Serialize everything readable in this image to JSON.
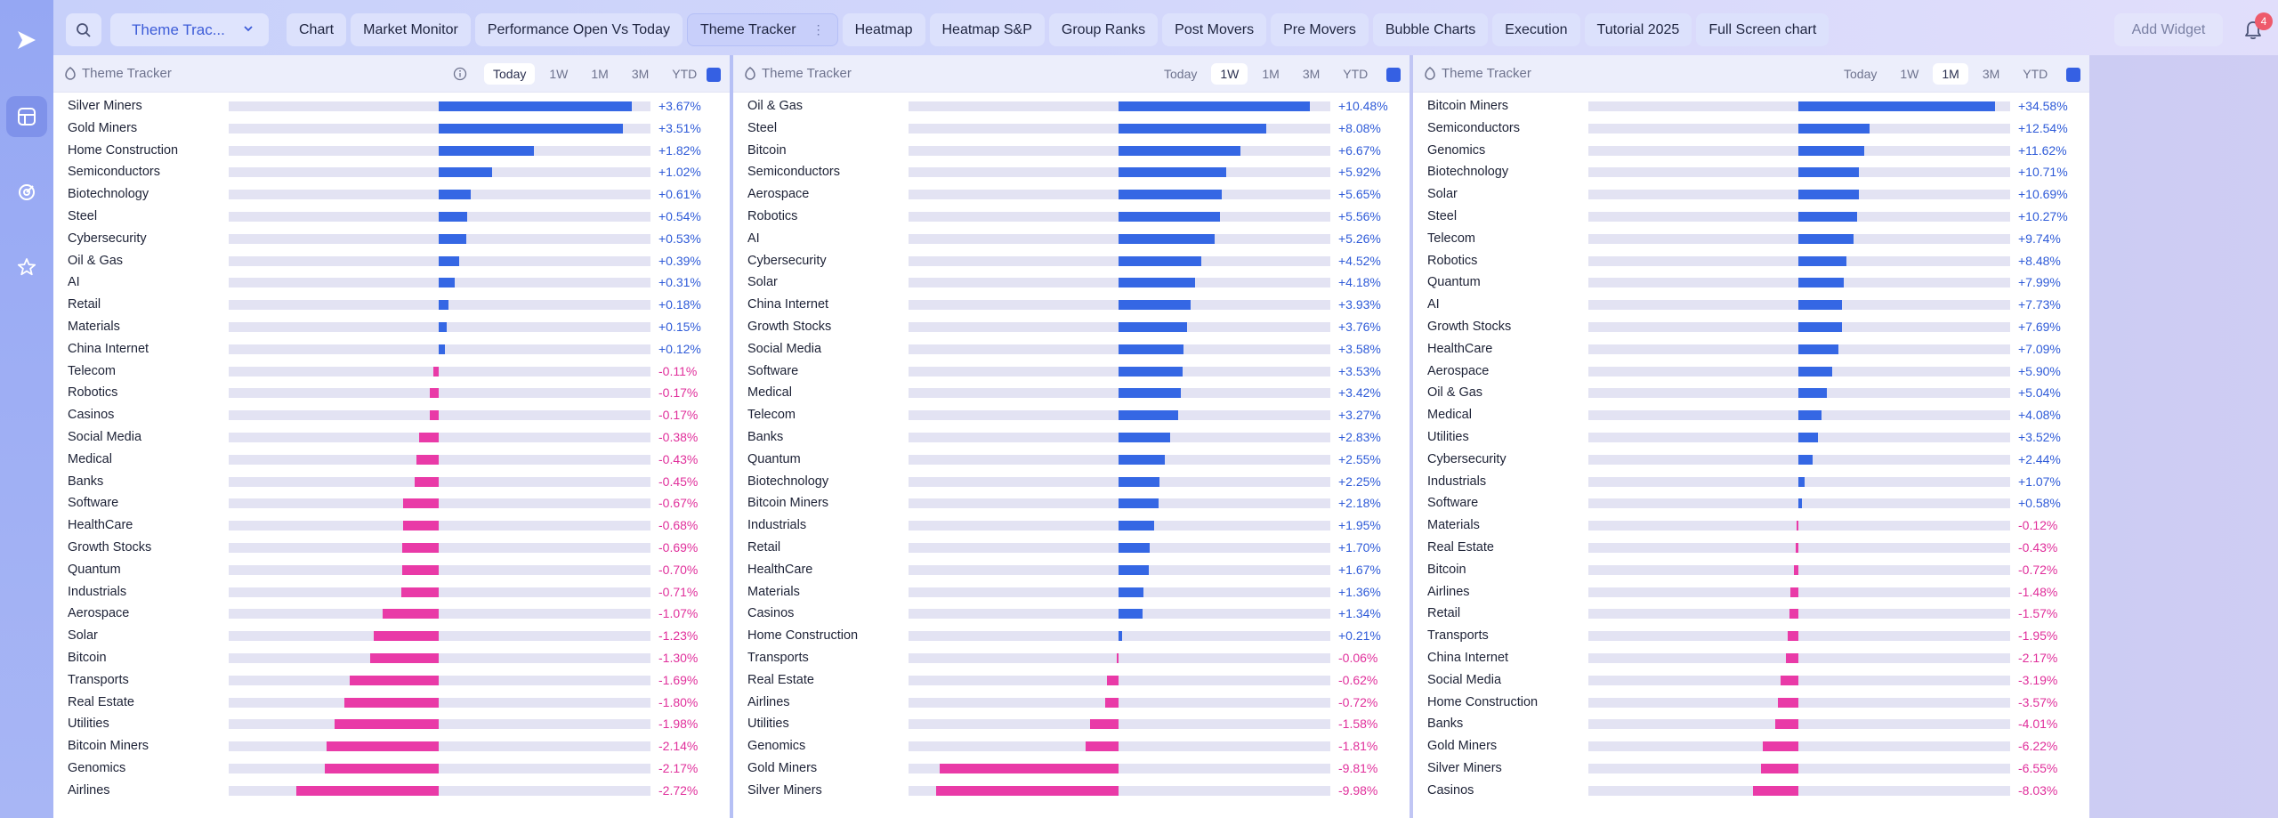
{
  "nav": {
    "theme_select": "Theme Trac...",
    "tabs": [
      "Chart",
      "Market Monitor",
      "Performance Open Vs Today",
      "Theme Tracker",
      "Heatmap",
      "Heatmap S&P",
      "Group Ranks",
      "Post Movers",
      "Pre Movers",
      "Bubble Charts",
      "Execution",
      "Tutorial 2025",
      "Full Screen chart"
    ],
    "active_tab": "Theme Tracker",
    "add_widget": "Add Widget",
    "notification_count": "4"
  },
  "colors": {
    "positive": "#3567e4",
    "negative": "#e93aa7",
    "accent": "#3560e3"
  },
  "panels": [
    {
      "title": "Theme Tracker",
      "periods": [
        "Today",
        "1W",
        "1M",
        "3M",
        "YTD"
      ],
      "active_period": "Today",
      "scale_max": 4.0,
      "rows": [
        {
          "name": "Silver Miners",
          "value": 3.67,
          "label": "+3.67%"
        },
        {
          "name": "Gold Miners",
          "value": 3.51,
          "label": "+3.51%"
        },
        {
          "name": "Home Construction",
          "value": 1.82,
          "label": "+1.82%"
        },
        {
          "name": "Semiconductors",
          "value": 1.02,
          "label": "+1.02%"
        },
        {
          "name": "Biotechnology",
          "value": 0.61,
          "label": "+0.61%"
        },
        {
          "name": "Steel",
          "value": 0.54,
          "label": "+0.54%"
        },
        {
          "name": "Cybersecurity",
          "value": 0.53,
          "label": "+0.53%"
        },
        {
          "name": "Oil & Gas",
          "value": 0.39,
          "label": "+0.39%"
        },
        {
          "name": "AI",
          "value": 0.31,
          "label": "+0.31%"
        },
        {
          "name": "Retail",
          "value": 0.18,
          "label": "+0.18%"
        },
        {
          "name": "Materials",
          "value": 0.15,
          "label": "+0.15%"
        },
        {
          "name": "China Internet",
          "value": 0.12,
          "label": "+0.12%"
        },
        {
          "name": "Telecom",
          "value": -0.11,
          "label": "-0.11%"
        },
        {
          "name": "Robotics",
          "value": -0.17,
          "label": "-0.17%"
        },
        {
          "name": "Casinos",
          "value": -0.17,
          "label": "-0.17%"
        },
        {
          "name": "Social Media",
          "value": -0.38,
          "label": "-0.38%"
        },
        {
          "name": "Medical",
          "value": -0.43,
          "label": "-0.43%"
        },
        {
          "name": "Banks",
          "value": -0.45,
          "label": "-0.45%"
        },
        {
          "name": "Software",
          "value": -0.67,
          "label": "-0.67%"
        },
        {
          "name": "HealthCare",
          "value": -0.68,
          "label": "-0.68%"
        },
        {
          "name": "Growth Stocks",
          "value": -0.69,
          "label": "-0.69%"
        },
        {
          "name": "Quantum",
          "value": -0.7,
          "label": "-0.70%"
        },
        {
          "name": "Industrials",
          "value": -0.71,
          "label": "-0.71%"
        },
        {
          "name": "Aerospace",
          "value": -1.07,
          "label": "-1.07%"
        },
        {
          "name": "Solar",
          "value": -1.23,
          "label": "-1.23%"
        },
        {
          "name": "Bitcoin",
          "value": -1.3,
          "label": "-1.30%"
        },
        {
          "name": "Transports",
          "value": -1.69,
          "label": "-1.69%"
        },
        {
          "name": "Real Estate",
          "value": -1.8,
          "label": "-1.80%"
        },
        {
          "name": "Utilities",
          "value": -1.98,
          "label": "-1.98%"
        },
        {
          "name": "Bitcoin Miners",
          "value": -2.14,
          "label": "-2.14%"
        },
        {
          "name": "Genomics",
          "value": -2.17,
          "label": "-2.17%"
        },
        {
          "name": "Airlines",
          "value": -2.72,
          "label": "-2.72%"
        }
      ]
    },
    {
      "title": "Theme Tracker",
      "periods": [
        "Today",
        "1W",
        "1M",
        "3M",
        "YTD"
      ],
      "active_period": "1W",
      "scale_max": 11.5,
      "rows": [
        {
          "name": "Oil & Gas",
          "value": 10.48,
          "label": "+10.48%"
        },
        {
          "name": "Steel",
          "value": 8.08,
          "label": "+8.08%"
        },
        {
          "name": "Bitcoin",
          "value": 6.67,
          "label": "+6.67%"
        },
        {
          "name": "Semiconductors",
          "value": 5.92,
          "label": "+5.92%"
        },
        {
          "name": "Aerospace",
          "value": 5.65,
          "label": "+5.65%"
        },
        {
          "name": "Robotics",
          "value": 5.56,
          "label": "+5.56%"
        },
        {
          "name": "AI",
          "value": 5.26,
          "label": "+5.26%"
        },
        {
          "name": "Cybersecurity",
          "value": 4.52,
          "label": "+4.52%"
        },
        {
          "name": "Solar",
          "value": 4.18,
          "label": "+4.18%"
        },
        {
          "name": "China Internet",
          "value": 3.93,
          "label": "+3.93%"
        },
        {
          "name": "Growth Stocks",
          "value": 3.76,
          "label": "+3.76%"
        },
        {
          "name": "Social Media",
          "value": 3.58,
          "label": "+3.58%"
        },
        {
          "name": "Software",
          "value": 3.53,
          "label": "+3.53%"
        },
        {
          "name": "Medical",
          "value": 3.42,
          "label": "+3.42%"
        },
        {
          "name": "Telecom",
          "value": 3.27,
          "label": "+3.27%"
        },
        {
          "name": "Banks",
          "value": 2.83,
          "label": "+2.83%"
        },
        {
          "name": "Quantum",
          "value": 2.55,
          "label": "+2.55%"
        },
        {
          "name": "Biotechnology",
          "value": 2.25,
          "label": "+2.25%"
        },
        {
          "name": "Bitcoin Miners",
          "value": 2.18,
          "label": "+2.18%"
        },
        {
          "name": "Industrials",
          "value": 1.95,
          "label": "+1.95%"
        },
        {
          "name": "Retail",
          "value": 1.7,
          "label": "+1.70%"
        },
        {
          "name": "HealthCare",
          "value": 1.67,
          "label": "+1.67%"
        },
        {
          "name": "Materials",
          "value": 1.36,
          "label": "+1.36%"
        },
        {
          "name": "Casinos",
          "value": 1.34,
          "label": "+1.34%"
        },
        {
          "name": "Home Construction",
          "value": 0.21,
          "label": "+0.21%"
        },
        {
          "name": "Transports",
          "value": -0.06,
          "label": "-0.06%"
        },
        {
          "name": "Real Estate",
          "value": -0.62,
          "label": "-0.62%"
        },
        {
          "name": "Airlines",
          "value": -0.72,
          "label": "-0.72%"
        },
        {
          "name": "Utilities",
          "value": -1.58,
          "label": "-1.58%"
        },
        {
          "name": "Genomics",
          "value": -1.81,
          "label": "-1.81%"
        },
        {
          "name": "Gold Miners",
          "value": -9.81,
          "label": "-9.81%"
        },
        {
          "name": "Silver Miners",
          "value": -9.98,
          "label": "-9.98%"
        }
      ]
    },
    {
      "title": "Theme Tracker",
      "periods": [
        "Today",
        "1W",
        "1M",
        "3M",
        "YTD"
      ],
      "active_period": "1M",
      "scale_max": 37.0,
      "rows": [
        {
          "name": "Bitcoin Miners",
          "value": 34.58,
          "label": "+34.58%"
        },
        {
          "name": "Semiconductors",
          "value": 12.54,
          "label": "+12.54%"
        },
        {
          "name": "Genomics",
          "value": 11.62,
          "label": "+11.62%"
        },
        {
          "name": "Biotechnology",
          "value": 10.71,
          "label": "+10.71%"
        },
        {
          "name": "Solar",
          "value": 10.69,
          "label": "+10.69%"
        },
        {
          "name": "Steel",
          "value": 10.27,
          "label": "+10.27%"
        },
        {
          "name": "Telecom",
          "value": 9.74,
          "label": "+9.74%"
        },
        {
          "name": "Robotics",
          "value": 8.48,
          "label": "+8.48%"
        },
        {
          "name": "Quantum",
          "value": 7.99,
          "label": "+7.99%"
        },
        {
          "name": "AI",
          "value": 7.73,
          "label": "+7.73%"
        },
        {
          "name": "Growth Stocks",
          "value": 7.69,
          "label": "+7.69%"
        },
        {
          "name": "HealthCare",
          "value": 7.09,
          "label": "+7.09%"
        },
        {
          "name": "Aerospace",
          "value": 5.9,
          "label": "+5.90%"
        },
        {
          "name": "Oil & Gas",
          "value": 5.04,
          "label": "+5.04%"
        },
        {
          "name": "Medical",
          "value": 4.08,
          "label": "+4.08%"
        },
        {
          "name": "Utilities",
          "value": 3.52,
          "label": "+3.52%"
        },
        {
          "name": "Cybersecurity",
          "value": 2.44,
          "label": "+2.44%"
        },
        {
          "name": "Industrials",
          "value": 1.07,
          "label": "+1.07%"
        },
        {
          "name": "Software",
          "value": 0.58,
          "label": "+0.58%"
        },
        {
          "name": "Materials",
          "value": -0.12,
          "label": "-0.12%"
        },
        {
          "name": "Real Estate",
          "value": -0.43,
          "label": "-0.43%"
        },
        {
          "name": "Bitcoin",
          "value": -0.72,
          "label": "-0.72%"
        },
        {
          "name": "Airlines",
          "value": -1.48,
          "label": "-1.48%"
        },
        {
          "name": "Retail",
          "value": -1.57,
          "label": "-1.57%"
        },
        {
          "name": "Transports",
          "value": -1.95,
          "label": "-1.95%"
        },
        {
          "name": "China Internet",
          "value": -2.17,
          "label": "-2.17%"
        },
        {
          "name": "Social Media",
          "value": -3.19,
          "label": "-3.19%"
        },
        {
          "name": "Home Construction",
          "value": -3.57,
          "label": "-3.57%"
        },
        {
          "name": "Banks",
          "value": -4.01,
          "label": "-4.01%"
        },
        {
          "name": "Gold Miners",
          "value": -6.22,
          "label": "-6.22%"
        },
        {
          "name": "Silver Miners",
          "value": -6.55,
          "label": "-6.55%"
        },
        {
          "name": "Casinos",
          "value": -8.03,
          "label": "-8.03%"
        }
      ]
    }
  ]
}
